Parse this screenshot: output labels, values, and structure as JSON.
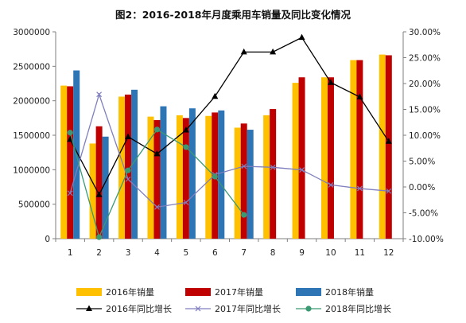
{
  "chart_data": {
    "type": "bar",
    "title": "图2：2016-2018年月度乘用车销量及同比变化情况",
    "categories": [
      "1",
      "2",
      "3",
      "4",
      "5",
      "6",
      "7",
      "8",
      "9",
      "10",
      "11",
      "12"
    ],
    "ylim": [
      0,
      3000000
    ],
    "y_ticks": [
      "0",
      "500000",
      "1000000",
      "1500000",
      "2000000",
      "2500000",
      "3000000"
    ],
    "y2lim": [
      -0.1,
      0.3
    ],
    "y2_ticks": [
      "-10.00%",
      "-5.00%",
      "0.00%",
      "5.00%",
      "10.00%",
      "15.00%",
      "20.00%",
      "25.00%",
      "30.00%"
    ],
    "grid": false,
    "legend_position": "bottom",
    "bar_series": [
      {
        "name": "2016年销量",
        "color": "#FFC000",
        "values": [
          2220000,
          1380000,
          2060000,
          1770000,
          1790000,
          1780000,
          1610000,
          1790000,
          2260000,
          2340000,
          2590000,
          2670000
        ]
      },
      {
        "name": "2017年销量",
        "color": "#C00000",
        "values": [
          2210000,
          1630000,
          2090000,
          1720000,
          1750000,
          1830000,
          1670000,
          1880000,
          2340000,
          2340000,
          2590000,
          2660000
        ]
      },
      {
        "name": "2018年销量",
        "color": "#2E75B6",
        "values": [
          2440000,
          1480000,
          2160000,
          1920000,
          1890000,
          1860000,
          1580000,
          null,
          null,
          null,
          null,
          null
        ]
      }
    ],
    "line_series": [
      {
        "name": "2016年同比增长",
        "color": "#000000",
        "marker": "triangle",
        "values": [
          0.092,
          -0.015,
          0.097,
          0.064,
          0.11,
          0.175,
          0.261,
          0.261,
          0.289,
          0.202,
          0.174,
          0.088
        ]
      },
      {
        "name": "2017年同比增长",
        "color": "#7F7FBF",
        "marker": "x",
        "values": [
          -0.012,
          0.179,
          0.015,
          -0.039,
          -0.03,
          0.024,
          0.04,
          0.038,
          0.033,
          0.004,
          -0.003,
          -0.008
        ]
      },
      {
        "name": "2018年同比增长",
        "color": "#3A9A74",
        "marker": "circle",
        "values": [
          0.105,
          -0.097,
          0.032,
          0.111,
          0.077,
          0.02,
          -0.054,
          null,
          null,
          null,
          null,
          null
        ]
      }
    ]
  }
}
